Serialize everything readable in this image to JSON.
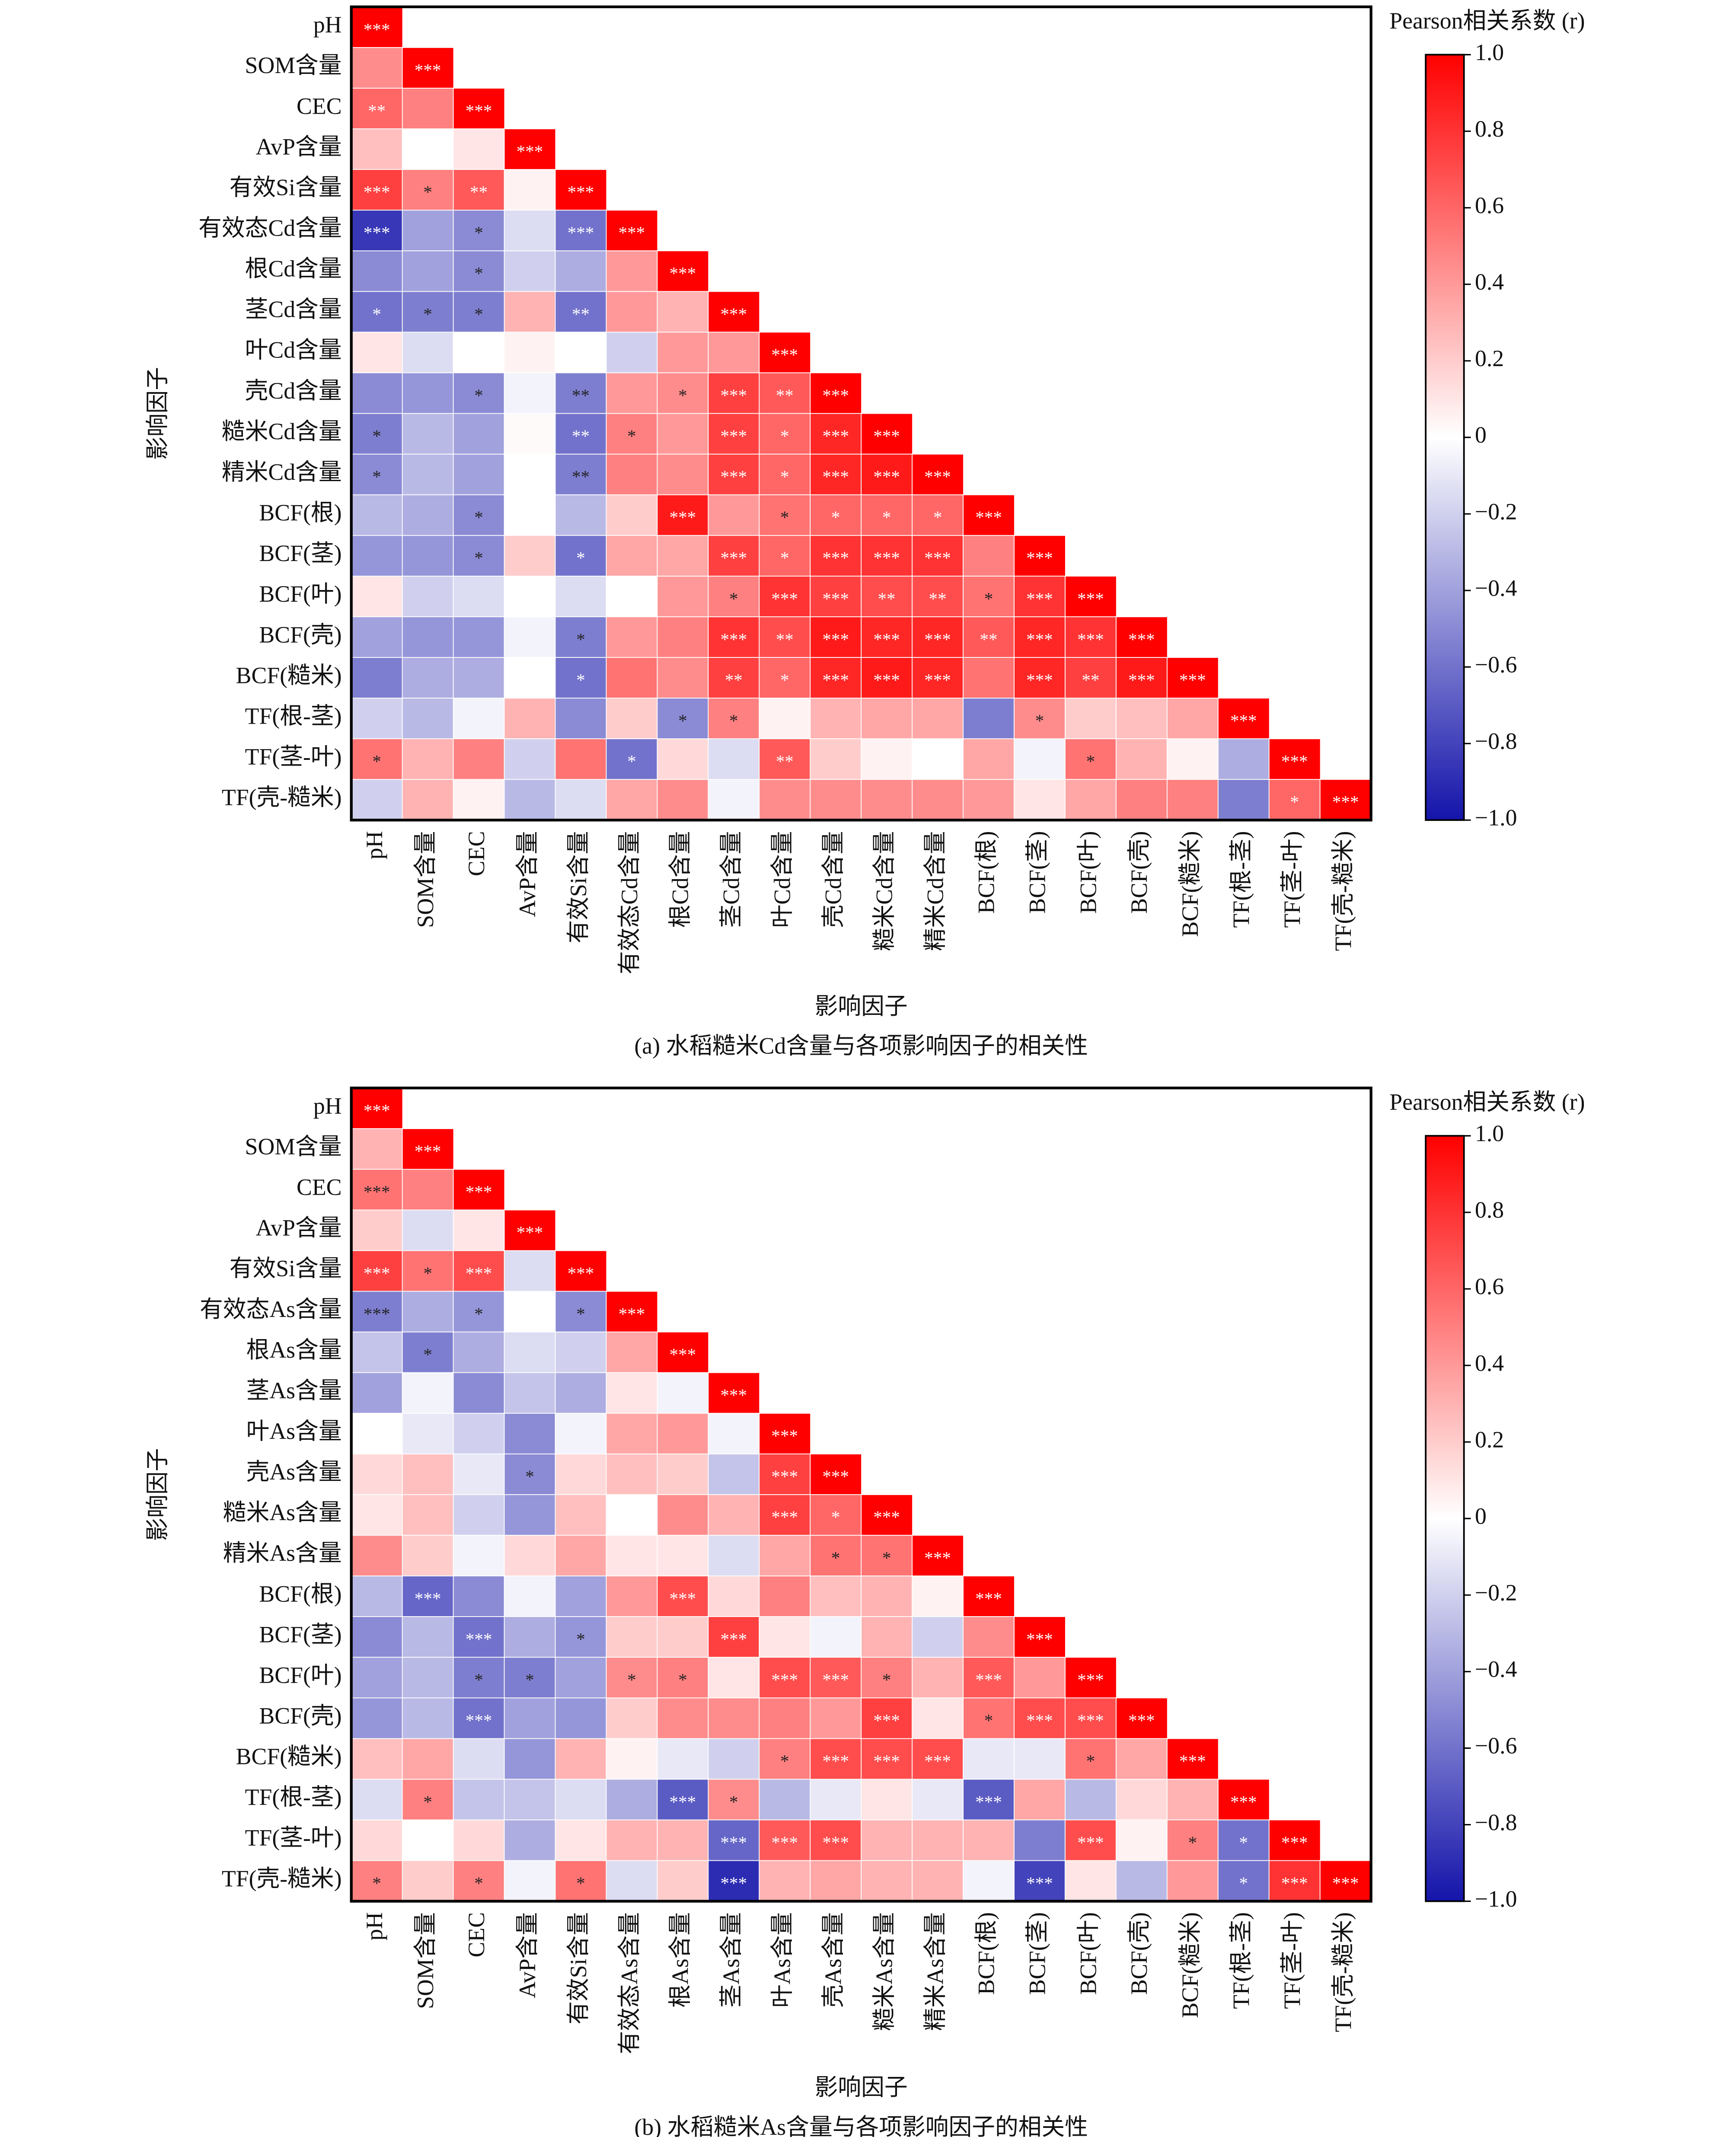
{
  "chart_data": [
    {
      "type": "heatmap",
      "title": "(a) 水稻糙米Cd含量与各项影响因子的相关性",
      "xlabel": "影响因子",
      "ylabel": "影响因子",
      "colorbar_label": "Pearson相关系数 (r)",
      "categories": [
        "pH",
        "SOM含量",
        "CEC",
        "AvP含量",
        "有效Si含量",
        "有效态Cd含量",
        "根Cd含量",
        "茎Cd含量",
        "叶Cd含量",
        "壳Cd含量",
        "糙米Cd含量",
        "精米Cd含量",
        "BCF(根)",
        "BCF(茎)",
        "BCF(叶)",
        "BCF(壳)",
        "BCF(糙米)",
        "TF(根-茎)",
        "TF(茎-叶)",
        "TF(壳-糙米)"
      ],
      "values": [
        [
          1
        ],
        [
          0.45,
          1
        ],
        [
          0.6,
          0.5,
          1
        ],
        [
          0.25,
          0,
          0.1,
          1
        ],
        [
          0.75,
          0.5,
          0.65,
          0.05,
          1
        ],
        [
          -0.85,
          -0.4,
          -0.5,
          -0.15,
          -0.6,
          1
        ],
        [
          -0.5,
          -0.4,
          -0.5,
          -0.2,
          -0.35,
          0.4,
          1
        ],
        [
          -0.6,
          -0.55,
          -0.55,
          0.3,
          -0.6,
          0.4,
          0.3,
          1
        ],
        [
          0.1,
          -0.15,
          0,
          0.05,
          0,
          -0.2,
          0.4,
          0.4,
          1
        ],
        [
          -0.5,
          -0.45,
          -0.5,
          -0.05,
          -0.55,
          0.4,
          0.45,
          0.75,
          0.65,
          1
        ],
        [
          -0.55,
          -0.3,
          -0.4,
          0.02,
          -0.6,
          0.5,
          0.4,
          0.75,
          0.6,
          0.85,
          1
        ],
        [
          -0.5,
          -0.3,
          -0.4,
          0,
          -0.55,
          0.5,
          0.45,
          0.75,
          0.6,
          0.85,
          0.9,
          1
        ],
        [
          -0.3,
          -0.35,
          -0.5,
          0,
          -0.3,
          0.2,
          0.9,
          0.4,
          0.55,
          0.6,
          0.6,
          0.6,
          1
        ],
        [
          -0.45,
          -0.45,
          -0.5,
          0.2,
          -0.6,
          0.35,
          0.35,
          0.75,
          0.6,
          0.8,
          0.8,
          0.8,
          0.5,
          1
        ],
        [
          0.1,
          -0.2,
          -0.15,
          0,
          -0.15,
          0,
          0.4,
          0.5,
          0.8,
          0.75,
          0.7,
          0.7,
          0.55,
          0.8,
          1
        ],
        [
          -0.4,
          -0.45,
          -0.45,
          -0.05,
          -0.55,
          0.4,
          0.5,
          0.8,
          0.7,
          0.9,
          0.85,
          0.85,
          0.65,
          0.85,
          0.8,
          1
        ],
        [
          -0.55,
          -0.35,
          -0.35,
          0,
          -0.6,
          0.55,
          0.45,
          0.75,
          0.6,
          0.85,
          0.9,
          0.85,
          0.55,
          0.85,
          0.75,
          0.9,
          1
        ],
        [
          -0.2,
          -0.3,
          -0.05,
          0.3,
          -0.5,
          0.2,
          -0.5,
          0.5,
          0.05,
          0.3,
          0.35,
          0.35,
          -0.55,
          0.45,
          0.2,
          0.25,
          0.35,
          1
        ],
        [
          0.55,
          0.3,
          0.5,
          -0.2,
          0.55,
          -0.6,
          0.15,
          -0.15,
          0.65,
          0.2,
          0.05,
          0,
          0.35,
          -0.05,
          0.55,
          0.3,
          0.05,
          -0.35,
          1
        ],
        [
          -0.2,
          0.3,
          0.05,
          -0.3,
          -0.15,
          0.35,
          0.45,
          -0.05,
          0.45,
          0.45,
          0.45,
          0.45,
          0.4,
          0.1,
          0.35,
          0.5,
          0.5,
          -0.55,
          0.6,
          1
        ]
      ],
      "annotations": [
        [
          "***"
        ],
        [
          null,
          "***"
        ],
        [
          "**",
          null,
          "***"
        ],
        [
          null,
          null,
          null,
          "***"
        ],
        [
          "***",
          "*",
          "**",
          null,
          "***"
        ],
        [
          "***",
          null,
          "*",
          null,
          "***",
          "***"
        ],
        [
          null,
          null,
          "*",
          null,
          null,
          null,
          "***"
        ],
        [
          "*",
          "*",
          "*",
          null,
          "**",
          null,
          null,
          "***"
        ],
        [
          null,
          null,
          null,
          null,
          null,
          null,
          null,
          null,
          "***"
        ],
        [
          null,
          null,
          "*",
          null,
          "**",
          null,
          "*",
          "***",
          "**",
          "***"
        ],
        [
          "*",
          null,
          null,
          null,
          "**",
          "*",
          null,
          "***",
          "*",
          "***",
          "***"
        ],
        [
          "*",
          null,
          null,
          null,
          "**",
          null,
          null,
          "***",
          "*",
          "***",
          "***",
          "***"
        ],
        [
          null,
          null,
          "*",
          null,
          null,
          null,
          "***",
          null,
          "*",
          "*",
          "*",
          "*",
          "***"
        ],
        [
          null,
          null,
          "*",
          null,
          "*",
          null,
          null,
          "***",
          "*",
          "***",
          "***",
          "***",
          null,
          "***"
        ],
        [
          null,
          null,
          null,
          null,
          null,
          null,
          null,
          "*",
          "***",
          "***",
          "**",
          "**",
          "*",
          "***",
          "***"
        ],
        [
          null,
          null,
          null,
          null,
          "*",
          null,
          null,
          "***",
          "**",
          "***",
          "***",
          "***",
          "**",
          "***",
          "***",
          "***"
        ],
        [
          null,
          null,
          null,
          null,
          "*",
          null,
          null,
          "**",
          "*",
          "***",
          "***",
          "***",
          null,
          "***",
          "**",
          "***",
          "***"
        ],
        [
          null,
          null,
          null,
          null,
          null,
          null,
          "*",
          "*",
          null,
          null,
          null,
          null,
          null,
          "*",
          null,
          null,
          null,
          "***"
        ],
        [
          "*",
          null,
          null,
          null,
          null,
          "*",
          null,
          null,
          "**",
          null,
          null,
          null,
          null,
          null,
          "*",
          null,
          null,
          null,
          "***"
        ],
        [
          null,
          null,
          null,
          null,
          null,
          null,
          null,
          null,
          null,
          null,
          null,
          null,
          null,
          null,
          null,
          null,
          null,
          null,
          "*",
          "***"
        ]
      ],
      "zlim": [
        -1,
        1
      ],
      "zticks": [
        {
          "value": -1,
          "label": "−1.0"
        },
        {
          "value": -0.8,
          "label": "−0.8"
        },
        {
          "value": -0.6,
          "label": "−0.6"
        },
        {
          "value": -0.4,
          "label": "−0.4"
        },
        {
          "value": -0.2,
          "label": "−0.2"
        },
        0,
        0.2,
        0.4,
        0.6,
        0.8,
        {
          "value": 1,
          "label": "1.0"
        }
      ],
      "colormap": [
        "#1414aa",
        "#ffffff",
        "#ff0000"
      ]
    },
    {
      "type": "heatmap",
      "title": "(b) 水稻糙米As含量与各项影响因子的相关性",
      "xlabel": "影响因子",
      "ylabel": "影响因子",
      "colorbar_label": "Pearson相关系数 (r)",
      "categories": [
        "pH",
        "SOM含量",
        "CEC",
        "AvP含量",
        "有效Si含量",
        "有效态As含量",
        "根As含量",
        "茎As含量",
        "叶As含量",
        "壳As含量",
        "糙米As含量",
        "精米As含量",
        "BCF(根)",
        "BCF(茎)",
        "BCF(叶)",
        "BCF(壳)",
        "BCF(糙米)",
        "TF(根-茎)",
        "TF(茎-叶)",
        "TF(壳-糙米)"
      ],
      "values": [
        [
          1
        ],
        [
          0.3,
          1
        ],
        [
          0.55,
          0.5,
          1
        ],
        [
          0.2,
          -0.15,
          0.1,
          1
        ],
        [
          0.75,
          0.55,
          0.7,
          -0.15,
          1
        ],
        [
          -0.55,
          -0.35,
          -0.45,
          0,
          -0.5,
          1
        ],
        [
          -0.25,
          -0.55,
          -0.35,
          -0.15,
          -0.2,
          0.35,
          1
        ],
        [
          -0.4,
          -0.05,
          -0.5,
          -0.25,
          -0.35,
          0.1,
          -0.05,
          1
        ],
        [
          0,
          -0.1,
          -0.2,
          -0.5,
          -0.05,
          0.35,
          0.4,
          -0.05,
          1
        ],
        [
          0.15,
          0.25,
          -0.1,
          -0.5,
          0.15,
          0.25,
          0.2,
          -0.25,
          0.75,
          1
        ],
        [
          0.1,
          0.25,
          -0.2,
          -0.45,
          0.25,
          0,
          0.45,
          0.3,
          0.75,
          0.6,
          1
        ],
        [
          0.45,
          0.2,
          -0.05,
          0.15,
          0.35,
          0.1,
          0.1,
          -0.15,
          0.35,
          0.55,
          0.55,
          1
        ],
        [
          -0.3,
          -0.65,
          -0.5,
          -0.05,
          -0.4,
          0.4,
          0.7,
          0.15,
          0.5,
          0.25,
          0.3,
          0.05,
          1
        ],
        [
          -0.5,
          -0.3,
          -0.6,
          -0.35,
          -0.45,
          0.2,
          0.2,
          0.75,
          0.1,
          -0.05,
          0.3,
          -0.2,
          0.45,
          1
        ],
        [
          -0.4,
          -0.3,
          -0.55,
          -0.55,
          -0.4,
          0.45,
          0.5,
          0.1,
          0.7,
          0.65,
          0.5,
          0.3,
          0.65,
          0.4,
          1
        ],
        [
          -0.45,
          -0.3,
          -0.6,
          -0.4,
          -0.45,
          0.2,
          0.45,
          0.45,
          0.5,
          0.4,
          0.75,
          0.1,
          0.55,
          0.7,
          0.7,
          1
        ],
        [
          0.25,
          0.35,
          -0.15,
          -0.45,
          0.3,
          0.05,
          -0.1,
          -0.2,
          0.5,
          0.7,
          0.7,
          0.7,
          -0.1,
          -0.1,
          0.55,
          0.35,
          1
        ],
        [
          -0.15,
          0.5,
          -0.25,
          -0.25,
          -0.15,
          -0.35,
          -0.7,
          0.45,
          -0.3,
          -0.1,
          0.1,
          -0.1,
          -0.7,
          0.35,
          -0.3,
          0.15,
          0.3,
          1
        ],
        [
          0.15,
          0,
          0.15,
          -0.35,
          0.1,
          0.3,
          0.3,
          -0.65,
          0.65,
          0.7,
          0.3,
          0.3,
          0.3,
          -0.55,
          0.7,
          0.05,
          0.5,
          -0.6,
          1
        ],
        [
          0.5,
          0.2,
          0.5,
          -0.05,
          0.55,
          -0.15,
          0.2,
          -0.9,
          0.3,
          0.35,
          0.3,
          0.3,
          -0.05,
          -0.8,
          0.1,
          -0.3,
          0.4,
          -0.6,
          0.8,
          1
        ]
      ],
      "annotations": [
        [
          "***"
        ],
        [
          null,
          "***"
        ],
        [
          "***",
          null,
          "***"
        ],
        [
          null,
          null,
          null,
          "***"
        ],
        [
          "***",
          "*",
          "***",
          null,
          "***"
        ],
        [
          "***",
          null,
          "*",
          null,
          "*",
          "***"
        ],
        [
          null,
          "*",
          null,
          null,
          null,
          null,
          "***"
        ],
        [
          null,
          null,
          null,
          null,
          null,
          null,
          null,
          "***"
        ],
        [
          null,
          null,
          null,
          null,
          null,
          null,
          null,
          null,
          "***"
        ],
        [
          null,
          null,
          null,
          "*",
          null,
          null,
          null,
          null,
          "***",
          "***"
        ],
        [
          null,
          null,
          null,
          null,
          null,
          null,
          null,
          null,
          "***",
          "*",
          "***"
        ],
        [
          null,
          null,
          null,
          null,
          null,
          null,
          null,
          null,
          null,
          "*",
          "*",
          "***"
        ],
        [
          null,
          "***",
          null,
          null,
          null,
          null,
          "***",
          null,
          null,
          null,
          null,
          null,
          "***"
        ],
        [
          null,
          null,
          "***",
          null,
          "*",
          null,
          null,
          "***",
          null,
          null,
          null,
          null,
          null,
          "***"
        ],
        [
          null,
          null,
          "*",
          "*",
          null,
          "*",
          "*",
          null,
          "***",
          "***",
          "*",
          null,
          "***",
          null,
          "***"
        ],
        [
          null,
          null,
          "***",
          null,
          null,
          null,
          null,
          null,
          null,
          null,
          "***",
          null,
          "*",
          "***",
          "***",
          "***"
        ],
        [
          null,
          null,
          null,
          null,
          null,
          null,
          null,
          null,
          "*",
          "***",
          "***",
          "***",
          null,
          null,
          "*",
          null,
          "***"
        ],
        [
          null,
          "*",
          null,
          null,
          null,
          null,
          "***",
          "*",
          null,
          null,
          null,
          null,
          "***",
          null,
          null,
          null,
          null,
          "***"
        ],
        [
          null,
          null,
          null,
          null,
          null,
          null,
          null,
          "***",
          "***",
          "***",
          null,
          null,
          null,
          null,
          "***",
          null,
          "*",
          "*",
          "***"
        ],
        [
          "*",
          null,
          "*",
          null,
          "*",
          null,
          null,
          "***",
          null,
          null,
          null,
          null,
          null,
          "***",
          null,
          null,
          null,
          "*",
          "***",
          "***"
        ]
      ],
      "zlim": [
        -1,
        1
      ],
      "zticks": [
        {
          "value": -1,
          "label": "−1.0"
        },
        {
          "value": -0.8,
          "label": "−0.8"
        },
        {
          "value": -0.6,
          "label": "−0.6"
        },
        {
          "value": -0.4,
          "label": "−0.4"
        },
        {
          "value": -0.2,
          "label": "−0.2"
        },
        0,
        0.2,
        0.4,
        0.6,
        0.8,
        {
          "value": 1,
          "label": "1.0"
        }
      ],
      "colormap": [
        "#1414aa",
        "#ffffff",
        "#ff0000"
      ]
    }
  ]
}
